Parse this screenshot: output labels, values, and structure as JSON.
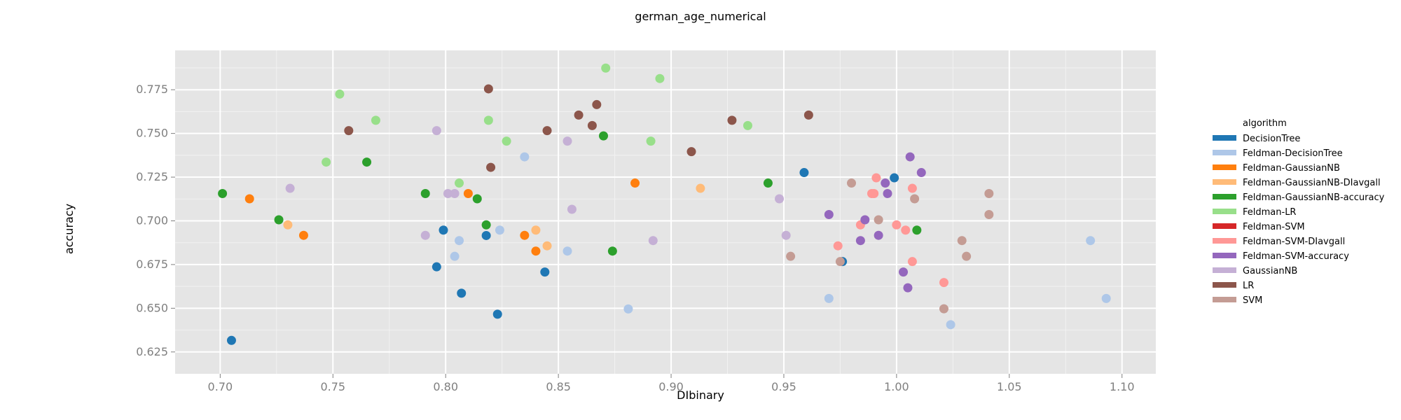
{
  "chart_data": {
    "type": "scatter",
    "title": "german_age_numerical",
    "xlabel": "DIbinary",
    "ylabel": "accuracy",
    "xlim": [
      0.68,
      1.115
    ],
    "ylim": [
      0.6125,
      0.7975
    ],
    "xticks": [
      "0.70",
      "0.75",
      "0.80",
      "0.85",
      "0.90",
      "0.95",
      "1.00",
      "1.05",
      "1.10"
    ],
    "yticks": [
      "0.625",
      "0.650",
      "0.675",
      "0.700",
      "0.725",
      "0.750",
      "0.775"
    ],
    "grid": true,
    "legend_position": "right",
    "legend_title": "algorithm",
    "series": [
      {
        "name": "DecisionTree",
        "color": "#1f77b4",
        "x": [
          0.705,
          0.796,
          0.799,
          0.807,
          0.818,
          0.823,
          0.844,
          0.959,
          0.976,
          0.999
        ],
        "y": [
          0.6316,
          0.6737,
          0.6947,
          0.6586,
          0.6916,
          0.6466,
          0.6707,
          0.7276,
          0.6767,
          0.7246
        ]
      },
      {
        "name": "Feldman-DecisionTree",
        "color": "#aec7e8",
        "x": [
          0.804,
          0.806,
          0.824,
          0.835,
          0.854,
          0.881,
          0.97,
          1.024,
          1.086,
          1.093
        ],
        "y": [
          0.6797,
          0.6887,
          0.6947,
          0.7366,
          0.6827,
          0.6496,
          0.6556,
          0.6406,
          0.6887,
          0.6556
        ]
      },
      {
        "name": "Feldman-GaussianNB",
        "color": "#ff7f0e",
        "x": [
          0.713,
          0.737,
          0.81,
          0.835,
          0.84,
          0.884
        ],
        "y": [
          0.7126,
          0.6917,
          0.7156,
          0.6917,
          0.6827,
          0.7216
        ]
      },
      {
        "name": "Feldman-GaussianNB-DIavgall",
        "color": "#ffbb78",
        "x": [
          0.73,
          0.84,
          0.845,
          0.913
        ],
        "y": [
          0.6977,
          0.6947,
          0.6857,
          0.7186
        ]
      },
      {
        "name": "Feldman-GaussianNB-accuracy",
        "color": "#2ca02c",
        "x": [
          0.701,
          0.726,
          0.765,
          0.791,
          0.814,
          0.818,
          0.87,
          0.874,
          0.943,
          1.009
        ],
        "y": [
          0.7156,
          0.7006,
          0.7336,
          0.7156,
          0.7126,
          0.6977,
          0.7486,
          0.6827,
          0.7216,
          0.6947
        ]
      },
      {
        "name": "Feldman-LR",
        "color": "#98df8a",
        "x": [
          0.747,
          0.753,
          0.769,
          0.806,
          0.819,
          0.827,
          0.871,
          0.891,
          0.895,
          0.934
        ],
        "y": [
          0.7336,
          0.7725,
          0.7575,
          0.7216,
          0.7575,
          0.7456,
          0.7874,
          0.7456,
          0.7814,
          0.7545
        ]
      },
      {
        "name": "Feldman-SVM",
        "color": "#d62728",
        "x": [],
        "y": []
      },
      {
        "name": "Feldman-SVM-DIavgall",
        "color": "#ff9896",
        "x": [
          0.974,
          0.984,
          0.989,
          0.99,
          0.991,
          1.0,
          1.004,
          1.007,
          1.007,
          1.021
        ],
        "y": [
          0.6857,
          0.6977,
          0.7156,
          0.7156,
          0.7246,
          0.6977,
          0.6947,
          0.6767,
          0.7186,
          0.6647
        ]
      },
      {
        "name": "Feldman-SVM-accuracy",
        "color": "#9467bd",
        "x": [
          0.97,
          0.984,
          0.986,
          0.992,
          0.995,
          0.996,
          1.003,
          1.005,
          1.006,
          1.011
        ],
        "y": [
          0.7036,
          0.6887,
          0.7006,
          0.6917,
          0.7216,
          0.7156,
          0.6707,
          0.6617,
          0.7366,
          0.7276
        ]
      },
      {
        "name": "GaussianNB",
        "color": "#c5b0d5",
        "x": [
          0.731,
          0.791,
          0.796,
          0.801,
          0.804,
          0.854,
          0.856,
          0.892,
          0.948,
          0.951
        ],
        "y": [
          0.7186,
          0.6917,
          0.7516,
          0.7156,
          0.7156,
          0.7456,
          0.7066,
          0.6887,
          0.7126,
          0.6917
        ]
      },
      {
        "name": "LR",
        "color": "#8c564b",
        "x": [
          0.757,
          0.819,
          0.82,
          0.845,
          0.859,
          0.865,
          0.867,
          0.909,
          0.927,
          0.961
        ],
        "y": [
          0.7516,
          0.7755,
          0.7306,
          0.7516,
          0.7605,
          0.7545,
          0.7665,
          0.7396,
          0.7575,
          0.7605
        ]
      },
      {
        "name": "SVM",
        "color": "#c49c94",
        "x": [
          0.953,
          0.975,
          0.98,
          0.992,
          1.008,
          1.021,
          1.029,
          1.031,
          1.041,
          1.041
        ],
        "y": [
          0.6797,
          0.6767,
          0.7216,
          0.7006,
          0.7126,
          0.6497,
          0.6887,
          0.6797,
          0.7156,
          0.7036
        ]
      }
    ]
  }
}
